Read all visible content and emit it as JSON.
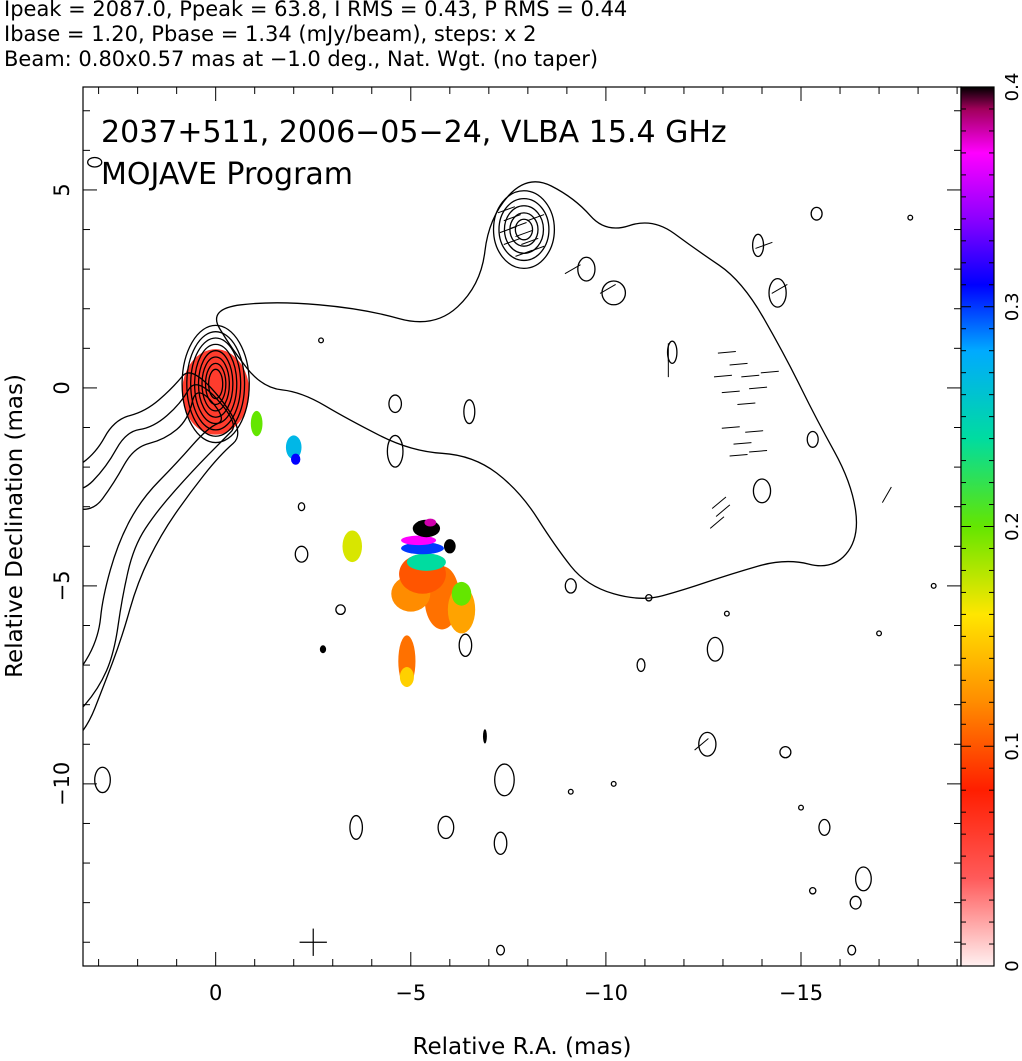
{
  "header": {
    "line1": "Ipeak = 2087.0, Ppeak = 63.8, I RMS = 0.43, P RMS = 0.44",
    "line2": "Ibase = 1.20, Pbase = 1.34 (mJy/beam), steps: x 2",
    "line3": "Beam: 0.80x0.57 mas at −1.0 deg., Nat. Wgt. (no taper)"
  },
  "chart_data": {
    "type": "heatmap",
    "title": "2037+511, 2006−05−24, VLBA 15.4 GHz",
    "subtitle": "MOJAVE Program",
    "xlabel": "Relative R.A. (mas)",
    "ylabel": "Relative Declination (mas)",
    "xlim": [
      3.4,
      -19.1
    ],
    "ylim": [
      -14.6,
      7.6
    ],
    "x_ticks": [
      {
        "v": 0,
        "label": "0"
      },
      {
        "v": -5,
        "label": "−5"
      },
      {
        "v": -10,
        "label": "−10"
      },
      {
        "v": -15,
        "label": "−15"
      }
    ],
    "y_ticks": [
      {
        "v": 5,
        "label": "5"
      },
      {
        "v": 0,
        "label": "0"
      },
      {
        "v": -5,
        "label": "−5"
      },
      {
        "v": -10,
        "label": "−10"
      }
    ],
    "colorbar": {
      "min": 0,
      "max": 0.4,
      "ticks": [
        {
          "v": 0,
          "label": "0"
        },
        {
          "v": 0.1,
          "label": "0.1"
        },
        {
          "v": 0.2,
          "label": "0.2"
        },
        {
          "v": 0.3,
          "label": "0.3"
        },
        {
          "v": 0.4,
          "label": "0.4"
        }
      ],
      "stops": [
        {
          "v": 0.0,
          "color": "#fff0f0"
        },
        {
          "v": 0.04,
          "color": "#ff5a5a"
        },
        {
          "v": 0.08,
          "color": "#ff1e00"
        },
        {
          "v": 0.12,
          "color": "#ff8c00"
        },
        {
          "v": 0.16,
          "color": "#ffe600"
        },
        {
          "v": 0.2,
          "color": "#64e600"
        },
        {
          "v": 0.24,
          "color": "#00dca0"
        },
        {
          "v": 0.28,
          "color": "#00aaff"
        },
        {
          "v": 0.31,
          "color": "#0000ff"
        },
        {
          "v": 0.34,
          "color": "#8c00ff"
        },
        {
          "v": 0.37,
          "color": "#ff00ff"
        },
        {
          "v": 0.39,
          "color": "#a0005a"
        },
        {
          "v": 0.4,
          "color": "#000000"
        }
      ]
    },
    "core_contours": {
      "center": [
        0.0,
        0.1
      ],
      "semi_axes": [
        [
          0.18,
          0.37
        ],
        [
          0.26,
          0.52
        ],
        [
          0.35,
          0.68
        ],
        [
          0.44,
          0.84
        ],
        [
          0.54,
          1.0
        ],
        [
          0.64,
          1.16
        ],
        [
          0.74,
          1.32
        ],
        [
          0.86,
          1.48
        ]
      ]
    },
    "ne_knot_contours": {
      "center": [
        -7.9,
        4.0
      ],
      "semi_axes": [
        [
          0.22,
          0.26
        ],
        [
          0.36,
          0.42
        ],
        [
          0.5,
          0.6
        ],
        [
          0.64,
          0.78
        ],
        [
          0.78,
          0.98
        ]
      ]
    },
    "jet_contours": [
      [
        [
          0.5,
          0.1
        ],
        [
          0.7,
          -0.8
        ],
        [
          1.3,
          -1.3
        ],
        [
          2.1,
          -1.5
        ],
        [
          2.6,
          -2.4
        ],
        [
          3.2,
          -3.2
        ],
        [
          4.2,
          -2.8
        ],
        [
          5.0,
          -3.2
        ],
        [
          5.8,
          -3.6
        ],
        [
          6.2,
          -4.4
        ],
        [
          6.5,
          -5.4
        ],
        [
          6.4,
          -6.4
        ],
        [
          5.8,
          -7.2
        ],
        [
          5.0,
          -7.6
        ],
        [
          4.2,
          -7.8
        ],
        [
          3.5,
          -7.2
        ],
        [
          3.0,
          -6.3
        ],
        [
          2.9,
          -5.3
        ],
        [
          2.5,
          -3.9
        ],
        [
          1.9,
          -2.8
        ],
        [
          1.0,
          -1.9
        ],
        [
          0.2,
          -1.0
        ],
        [
          -0.3,
          -0.8
        ]
      ],
      [
        [
          0.5,
          0.3
        ],
        [
          0.9,
          -0.4
        ],
        [
          1.6,
          -1.0
        ],
        [
          2.3,
          -1.1
        ],
        [
          2.8,
          -2.0
        ],
        [
          3.5,
          -2.7
        ],
        [
          4.3,
          -2.3
        ],
        [
          5.2,
          -2.6
        ],
        [
          6.0,
          -3.1
        ],
        [
          6.6,
          -3.9
        ],
        [
          7.0,
          -5.1
        ],
        [
          7.1,
          -6.5
        ],
        [
          6.8,
          -7.7
        ],
        [
          5.9,
          -8.4
        ],
        [
          4.7,
          -8.6
        ],
        [
          3.7,
          -8.4
        ],
        [
          3.0,
          -7.6
        ],
        [
          2.6,
          -6.7
        ],
        [
          2.4,
          -5.3
        ],
        [
          2.1,
          -4.0
        ],
        [
          1.5,
          -3.1
        ],
        [
          0.6,
          -2.1
        ],
        [
          -0.2,
          -1.3
        ],
        [
          -0.6,
          -0.9
        ]
      ],
      [
        [
          0.6,
          0.6
        ],
        [
          1.1,
          0.0
        ],
        [
          1.8,
          -0.6
        ],
        [
          2.6,
          -0.8
        ],
        [
          3.1,
          -1.7
        ],
        [
          3.9,
          -2.2
        ],
        [
          4.6,
          -2.0
        ],
        [
          5.5,
          -2.2
        ],
        [
          6.2,
          -2.8
        ],
        [
          6.9,
          -3.6
        ],
        [
          7.4,
          -4.8
        ],
        [
          7.8,
          -6.2
        ],
        [
          8.0,
          -7.8
        ],
        [
          7.6,
          -9.2
        ],
        [
          6.6,
          -9.8
        ],
        [
          5.2,
          -9.8
        ],
        [
          4.0,
          -9.3
        ],
        [
          3.3,
          -8.6
        ],
        [
          2.9,
          -7.6
        ],
        [
          2.4,
          -6.3
        ],
        [
          2.0,
          -4.9
        ],
        [
          1.4,
          -3.7
        ],
        [
          0.7,
          -2.7
        ],
        [
          -0.1,
          -1.7
        ],
        [
          -0.8,
          -1.1
        ]
      ]
    ],
    "outer_contour": [
      [
        0.2,
        2.0
      ],
      [
        -1.5,
        2.2
      ],
      [
        -3.8,
        2.0
      ],
      [
        -5.6,
        1.5
      ],
      [
        -6.8,
        2.6
      ],
      [
        -7.0,
        4.3
      ],
      [
        -8.0,
        5.4
      ],
      [
        -9.2,
        4.8
      ],
      [
        -10.0,
        3.9
      ],
      [
        -11.2,
        4.3
      ],
      [
        -12.3,
        3.5
      ],
      [
        -13.5,
        2.7
      ],
      [
        -14.6,
        0.8
      ],
      [
        -15.4,
        -0.8
      ],
      [
        -16.3,
        -2.4
      ],
      [
        -16.5,
        -3.8
      ],
      [
        -15.8,
        -4.6
      ],
      [
        -14.6,
        -4.3
      ],
      [
        -13.2,
        -4.7
      ],
      [
        -12.0,
        -5.1
      ],
      [
        -10.9,
        -5.4
      ],
      [
        -9.5,
        -5.0
      ],
      [
        -8.7,
        -4.0
      ],
      [
        -7.8,
        -2.6
      ],
      [
        -6.6,
        -1.7
      ],
      [
        -5.0,
        -1.6
      ],
      [
        -3.4,
        -0.8
      ],
      [
        -2.2,
        -0.1
      ],
      [
        -1.2,
        0.0
      ],
      [
        -0.4,
        1.0
      ]
    ],
    "noise_contours": [
      [
        -4.6,
        -0.4,
        0.16,
        0.22
      ],
      [
        -4.6,
        -1.6,
        0.2,
        0.4
      ],
      [
        -6.5,
        -0.6,
        0.14,
        0.3
      ],
      [
        -9.1,
        -5.0,
        0.14,
        0.18
      ],
      [
        -12.8,
        -6.6,
        0.2,
        0.3
      ],
      [
        -14.0,
        -2.6,
        0.22,
        0.3
      ],
      [
        -15.3,
        -1.3,
        0.14,
        0.2
      ],
      [
        -10.9,
        -7.0,
        0.1,
        0.16
      ],
      [
        -12.6,
        -9.0,
        0.22,
        0.3
      ],
      [
        -14.6,
        -9.2,
        0.14,
        0.14
      ],
      [
        -15.6,
        -11.1,
        0.14,
        0.2
      ],
      [
        -16.6,
        -12.4,
        0.2,
        0.3
      ],
      [
        -16.4,
        -13.0,
        0.14,
        0.16
      ],
      [
        -16.3,
        -14.2,
        0.1,
        0.12
      ],
      [
        -17.0,
        -6.2,
        0.06,
        0.06
      ],
      [
        -7.3,
        -11.5,
        0.16,
        0.28
      ],
      [
        -7.4,
        -9.9,
        0.25,
        0.4
      ],
      [
        -7.3,
        -14.2,
        0.1,
        0.12
      ],
      [
        -3.6,
        -11.1,
        0.16,
        0.3
      ],
      [
        -5.9,
        -11.1,
        0.2,
        0.28
      ],
      [
        -3.2,
        -5.6,
        0.12,
        0.12
      ],
      [
        -6.4,
        -6.5,
        0.16,
        0.28
      ],
      [
        -2.2,
        -4.2,
        0.16,
        0.2
      ],
      [
        -2.2,
        -3.0,
        0.08,
        0.1
      ],
      [
        2.9,
        -9.9,
        0.2,
        0.32
      ],
      [
        -15.4,
        4.4,
        0.14,
        0.16
      ],
      [
        -13.9,
        3.6,
        0.14,
        0.28
      ],
      [
        -14.4,
        2.4,
        0.22,
        0.36
      ],
      [
        -11.7,
        0.9,
        0.12,
        0.28
      ],
      [
        -9.5,
        3.0,
        0.22,
        0.3
      ],
      [
        -10.2,
        2.4,
        0.3,
        0.3
      ],
      [
        -2.7,
        1.2,
        0.06,
        0.06
      ],
      [
        -9.1,
        -10.2,
        0.06,
        0.06
      ],
      [
        -10.2,
        -10.0,
        0.06,
        0.06
      ],
      [
        -15.3,
        -12.7,
        0.08,
        0.08
      ],
      [
        -13.1,
        -5.7,
        0.06,
        0.06
      ],
      [
        -15.0,
        -10.6,
        0.06,
        0.06
      ],
      [
        -11.1,
        -5.3,
        0.08,
        0.08
      ],
      [
        -17.8,
        4.3,
        0.06,
        0.06
      ],
      [
        3.1,
        5.7,
        0.18,
        0.12
      ],
      [
        -18.4,
        -5.0,
        0.06,
        0.06
      ]
    ],
    "polarization_patches": [
      {
        "v": 0.06,
        "cx": 0.0,
        "cy": -0.1,
        "rx": 0.86,
        "ry": 1.08
      },
      {
        "v": 0.2,
        "cx": -1.05,
        "cy": -0.9,
        "rx": 0.15,
        "ry": 0.32
      },
      {
        "v": 0.27,
        "cx": -2.0,
        "cy": -1.5,
        "rx": 0.2,
        "ry": 0.3
      },
      {
        "v": 0.31,
        "cx": -2.05,
        "cy": -1.8,
        "rx": 0.12,
        "ry": 0.14
      },
      {
        "v": 0.17,
        "cx": -3.5,
        "cy": -4.0,
        "rx": 0.25,
        "ry": 0.4
      },
      {
        "v": 0.11,
        "cx": -5.8,
        "cy": -5.3,
        "rx": 0.45,
        "ry": 0.8
      },
      {
        "v": 0.12,
        "cx": -5.0,
        "cy": -5.2,
        "rx": 0.5,
        "ry": 0.45
      },
      {
        "v": 0.1,
        "cx": -5.3,
        "cy": -4.7,
        "rx": 0.6,
        "ry": 0.5
      },
      {
        "v": 0.13,
        "cx": -6.3,
        "cy": -5.6,
        "rx": 0.35,
        "ry": 0.6
      },
      {
        "v": 0.2,
        "cx": -6.3,
        "cy": -5.2,
        "rx": 0.25,
        "ry": 0.3
      },
      {
        "v": 0.11,
        "cx": -4.9,
        "cy": -6.9,
        "rx": 0.22,
        "ry": 0.65
      },
      {
        "v": 0.15,
        "cx": -4.9,
        "cy": -7.3,
        "rx": 0.18,
        "ry": 0.25
      },
      {
        "v": 0.24,
        "cx": -5.4,
        "cy": -4.4,
        "rx": 0.5,
        "ry": 0.22
      },
      {
        "v": 0.3,
        "cx": -5.3,
        "cy": -4.05,
        "rx": 0.55,
        "ry": 0.15
      },
      {
        "v": 0.37,
        "cx": -5.2,
        "cy": -3.85,
        "rx": 0.45,
        "ry": 0.12
      },
      {
        "v": 0.4,
        "cx": -5.4,
        "cy": -3.55,
        "rx": 0.35,
        "ry": 0.22
      },
      {
        "v": 0.4,
        "cx": -6.0,
        "cy": -4.0,
        "rx": 0.15,
        "ry": 0.18
      },
      {
        "v": 0.4,
        "cx": -2.75,
        "cy": -6.6,
        "rx": 0.08,
        "ry": 0.1
      },
      {
        "v": 0.4,
        "cx": -6.9,
        "cy": -8.8,
        "rx": 0.05,
        "ry": 0.18
      },
      {
        "v": 0.38,
        "cx": -5.5,
        "cy": -3.4,
        "rx": 0.15,
        "ry": 0.1
      }
    ],
    "evpa_vectors": [
      [
        -7.45,
        4.5,
        20
      ],
      [
        -7.6,
        4.3,
        20
      ],
      [
        -7.75,
        4.1,
        20
      ],
      [
        -7.9,
        3.9,
        20
      ],
      [
        -8.05,
        3.7,
        20
      ],
      [
        -8.2,
        3.5,
        20
      ],
      [
        -7.6,
        3.7,
        20
      ],
      [
        -7.9,
        3.4,
        20
      ],
      [
        -8.2,
        4.3,
        20
      ],
      [
        -7.5,
        4.0,
        20
      ],
      [
        -9.15,
        3.0,
        30
      ],
      [
        -10.05,
        2.5,
        30
      ],
      [
        -11.6,
        0.9,
        90
      ],
      [
        -11.6,
        0.5,
        90
      ],
      [
        -13.1,
        0.9,
        5
      ],
      [
        -13.4,
        0.6,
        5
      ],
      [
        -13.7,
        0.3,
        5
      ],
      [
        -13.2,
        -0.1,
        5
      ],
      [
        -13.6,
        -0.4,
        5
      ],
      [
        -13.9,
        0.0,
        5
      ],
      [
        -13.0,
        0.3,
        5
      ],
      [
        -14.2,
        0.4,
        5
      ],
      [
        -13.2,
        -1.0,
        5
      ],
      [
        -13.5,
        -1.4,
        5
      ],
      [
        -13.8,
        -1.1,
        5
      ],
      [
        -13.4,
        -1.7,
        5
      ],
      [
        -13.9,
        -1.6,
        5
      ],
      [
        -12.9,
        -2.9,
        40
      ],
      [
        -12.85,
        -3.4,
        40
      ],
      [
        -13.0,
        -3.1,
        40
      ],
      [
        -14.05,
        3.6,
        20
      ],
      [
        -12.45,
        -9.0,
        40
      ],
      [
        -14.45,
        2.5,
        30
      ],
      [
        -17.2,
        -2.7,
        60
      ]
    ],
    "beam": {
      "x": -2.5,
      "y": -14.0,
      "size": 0.35
    }
  }
}
